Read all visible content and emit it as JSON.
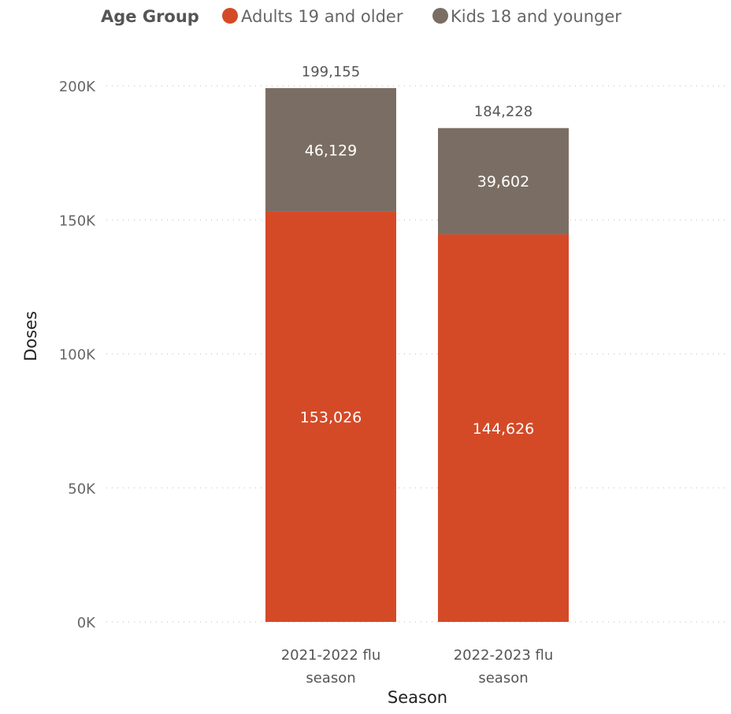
{
  "chart_data": {
    "type": "bar",
    "stacked": true,
    "legend": {
      "title": "Age Group",
      "placement": "top",
      "entries": [
        "Adults 19 and older",
        "Kids 18 and younger"
      ]
    },
    "categories": [
      [
        "2021-2022 flu",
        "season"
      ],
      [
        "2022-2023 flu",
        "season"
      ]
    ],
    "series": [
      {
        "name": "Adults 19 and older",
        "color": "#D44A27",
        "values": [
          153026,
          144626
        ],
        "labels": [
          "153,026",
          "144,626"
        ]
      },
      {
        "name": "Kids 18 and younger",
        "color": "#7A6E64",
        "values": [
          46129,
          39602
        ],
        "labels": [
          "46,129",
          "39,602"
        ]
      }
    ],
    "totals": [
      199155,
      184228
    ],
    "total_labels": [
      "199,155",
      "184,228"
    ],
    "xlabel": "Season",
    "ylabel": "Doses",
    "ylim": [
      0,
      200000
    ],
    "yticks": [
      0,
      50000,
      100000,
      150000,
      200000
    ],
    "ytick_labels": [
      "0K",
      "50K",
      "100K",
      "150K",
      "200K"
    ],
    "grid": true
  }
}
